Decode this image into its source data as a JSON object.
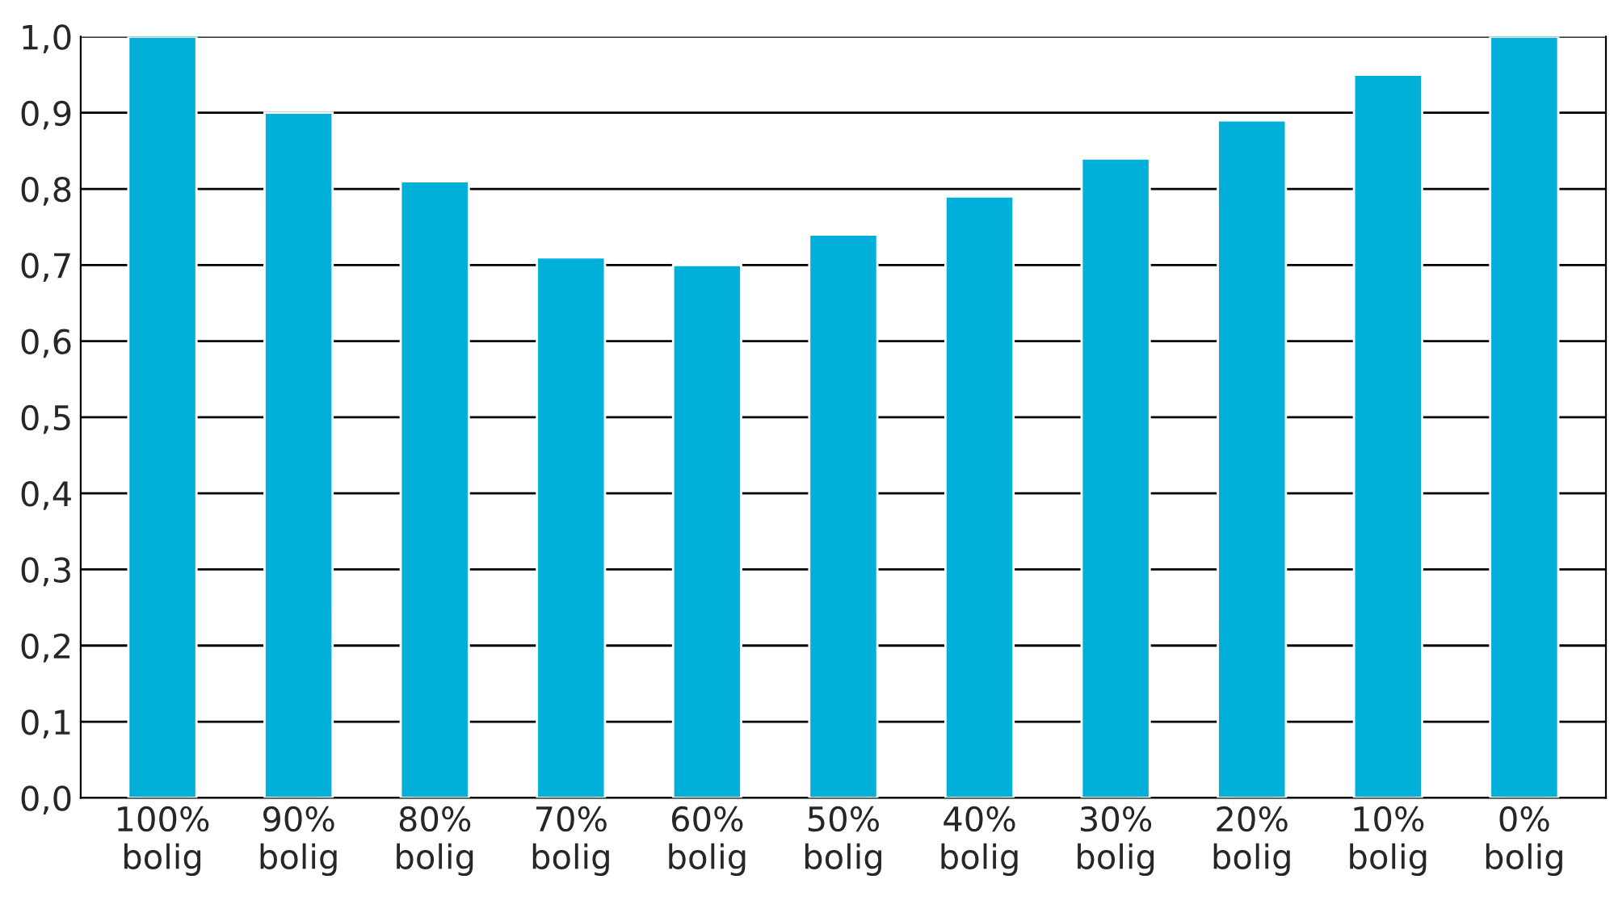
{
  "chart_data": {
    "type": "bar",
    "categories": [
      "100%\nbolig",
      "90%\nbolig",
      "80%\nbolig",
      "70%\nbolig",
      "60%\nbolig",
      "50%\nbolig",
      "40%\nbolig",
      "30%\nbolig",
      "20%\nbolig",
      "10%\nbolig",
      "0%\nbolig"
    ],
    "values": [
      1.0,
      0.9,
      0.81,
      0.71,
      0.7,
      0.74,
      0.79,
      0.84,
      0.89,
      0.95,
      1.0
    ],
    "color": "#00b0d8",
    "ylim": [
      0,
      1
    ],
    "yticks": [
      {
        "value": 0,
        "label": "0,0"
      },
      {
        "value": 0.1,
        "label": "0,1"
      },
      {
        "value": 0.2,
        "label": "0,2"
      },
      {
        "value": 0.3,
        "label": "0,3"
      },
      {
        "value": 0.4,
        "label": "0,4"
      },
      {
        "value": 0.5,
        "label": "0,5"
      },
      {
        "value": 0.6,
        "label": "0,6"
      },
      {
        "value": 0.7,
        "label": "0,7"
      },
      {
        "value": 0.8,
        "label": "0,8"
      },
      {
        "value": 0.9,
        "label": "0,9"
      },
      {
        "value": 1.0,
        "label": "1,0"
      }
    ],
    "grid": "y",
    "legend": false
  }
}
